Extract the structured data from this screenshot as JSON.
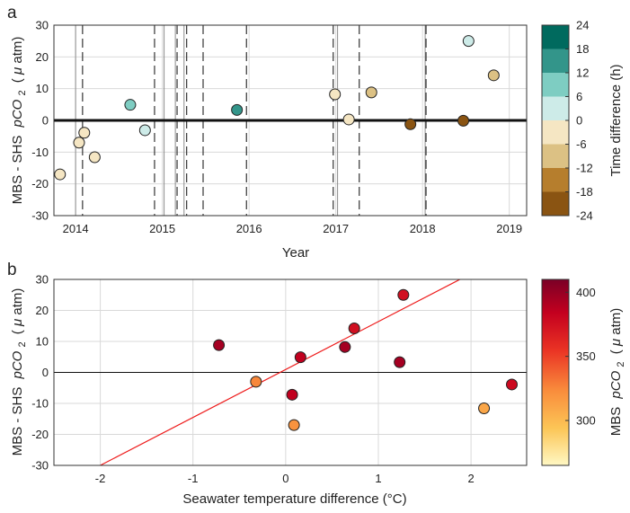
{
  "chart_data": [
    {
      "panel": "a",
      "type": "scatter",
      "xlabel": "Year",
      "ylabel": "MBS - SHS",
      "ylabel_var": "pCO",
      "ylabel_sub": "2",
      "ylabel_unit_open": "(",
      "ylabel_mu": "μ",
      "ylabel_unit_rest": "atm)",
      "xlim": [
        2013.75,
        2019.2
      ],
      "ylim": [
        -30,
        30
      ],
      "xticks": [
        2014,
        2015,
        2016,
        2017,
        2018,
        2019
      ],
      "xtick_labels": [
        "2014",
        "2015",
        "2016",
        "2017",
        "2018",
        "2019"
      ],
      "yticks": [
        -30,
        -20,
        -10,
        0,
        10,
        20,
        30
      ],
      "ytick_labels": [
        "-30",
        "-20",
        "-10",
        "0",
        "10",
        "20",
        "30"
      ],
      "grid": true,
      "zero_line": true,
      "solid_vlines": [
        2014.0,
        2015.02,
        2015.15,
        2015.25,
        2017.02,
        2018.03
      ],
      "dashed_vlines": [
        2014.08,
        2014.91,
        2015.17,
        2015.28,
        2015.47,
        2015.97,
        2016.97,
        2017.27,
        2018.04
      ],
      "points": [
        {
          "x": 2013.82,
          "y": -17.0,
          "c": -3
        },
        {
          "x": 2014.04,
          "y": -7.0,
          "c": -3
        },
        {
          "x": 2014.1,
          "y": -3.9,
          "c": -3
        },
        {
          "x": 2014.22,
          "y": -11.6,
          "c": -6
        },
        {
          "x": 2014.63,
          "y": 4.9,
          "c": 9
        },
        {
          "x": 2014.8,
          "y": -3.1,
          "c": 3
        },
        {
          "x": 2015.86,
          "y": 3.3,
          "c": 15
        },
        {
          "x": 2016.99,
          "y": 8.2,
          "c": -3
        },
        {
          "x": 2017.15,
          "y": 0.3,
          "c": -3
        },
        {
          "x": 2017.41,
          "y": 8.8,
          "c": -9
        },
        {
          "x": 2017.86,
          "y": -1.2,
          "c": -21
        },
        {
          "x": 2018.47,
          "y": -0.1,
          "c": -21
        },
        {
          "x": 2018.53,
          "y": 25.0,
          "c": 3
        },
        {
          "x": 2018.82,
          "y": 14.2,
          "c": -9
        }
      ],
      "colorbar": {
        "label": "Time difference (h)",
        "ticks": [
          24,
          18,
          12,
          6,
          0,
          -6,
          -12,
          -18,
          -24
        ],
        "tick_labels": [
          "24",
          "18",
          "12",
          "6",
          "0",
          "-6",
          "-12",
          "-18",
          "-24"
        ],
        "range": [
          -24,
          24
        ],
        "bins": [
          {
            "from": 18,
            "to": 24,
            "color": "#006a5e"
          },
          {
            "from": 12,
            "to": 18,
            "color": "#33958a"
          },
          {
            "from": 6,
            "to": 12,
            "color": "#7ecdc2"
          },
          {
            "from": 0,
            "to": 6,
            "color": "#cdebe8"
          },
          {
            "from": -6,
            "to": 0,
            "color": "#f5e6c3"
          },
          {
            "from": -12,
            "to": -6,
            "color": "#dcc184"
          },
          {
            "from": -18,
            "to": -12,
            "color": "#b67e2d"
          },
          {
            "from": -24,
            "to": -18,
            "color": "#8a5412"
          }
        ]
      }
    },
    {
      "panel": "b",
      "type": "scatter",
      "xlabel": "Seawater temperature difference (°C)",
      "ylabel": "MBS - SHS",
      "ylabel_var": "pCO",
      "ylabel_sub": "2",
      "ylabel_unit_open": "(",
      "ylabel_mu": "μ",
      "ylabel_unit_rest": "atm)",
      "xlim": [
        -2.5,
        2.6
      ],
      "ylim": [
        -30,
        30
      ],
      "xticks": [
        -2,
        -1,
        0,
        1,
        2
      ],
      "xtick_labels": [
        "-2",
        "-1",
        "0",
        "1",
        "2"
      ],
      "yticks": [
        -30,
        -20,
        -10,
        0,
        10,
        20,
        30
      ],
      "ytick_labels": [
        "-30",
        "-20",
        "-10",
        "0",
        "10",
        "20",
        "30"
      ],
      "grid": true,
      "zero_line": true,
      "fit_line": {
        "x0": -2.0,
        "y0": -30.0,
        "x1": 1.88,
        "y1": 30.0,
        "color": "#ee1c1c"
      },
      "points": [
        {
          "x": -0.72,
          "y": 8.8,
          "c": 395
        },
        {
          "x": -0.32,
          "y": -3.0,
          "c": 325
        },
        {
          "x": 0.07,
          "y": -7.2,
          "c": 385
        },
        {
          "x": 0.09,
          "y": -17.0,
          "c": 320
        },
        {
          "x": 0.16,
          "y": 4.9,
          "c": 385
        },
        {
          "x": 0.64,
          "y": 8.2,
          "c": 395
        },
        {
          "x": 0.74,
          "y": 14.2,
          "c": 375
        },
        {
          "x": 1.23,
          "y": 3.3,
          "c": 395
        },
        {
          "x": 1.27,
          "y": 25.0,
          "c": 375
        },
        {
          "x": 2.14,
          "y": -11.6,
          "c": 310
        },
        {
          "x": 2.44,
          "y": -3.9,
          "c": 378
        }
      ],
      "colorbar": {
        "label_prefix": "MBS",
        "label_var": "pCO",
        "label_sub": "2",
        "label_unit_open": "(",
        "label_mu": "μ",
        "label_unit_rest": "atm)",
        "range": [
          265,
          410
        ],
        "ticks": [
          400,
          350,
          300
        ],
        "tick_labels": [
          "400",
          "350",
          "300"
        ],
        "stops": [
          {
            "offset": 0.0,
            "color": "#7a0026"
          },
          {
            "offset": 0.18,
            "color": "#c4001f"
          },
          {
            "offset": 0.38,
            "color": "#ea3324"
          },
          {
            "offset": 0.6,
            "color": "#f98d3c"
          },
          {
            "offset": 0.8,
            "color": "#fcc556"
          },
          {
            "offset": 1.0,
            "color": "#fff8c4"
          }
        ]
      }
    }
  ]
}
